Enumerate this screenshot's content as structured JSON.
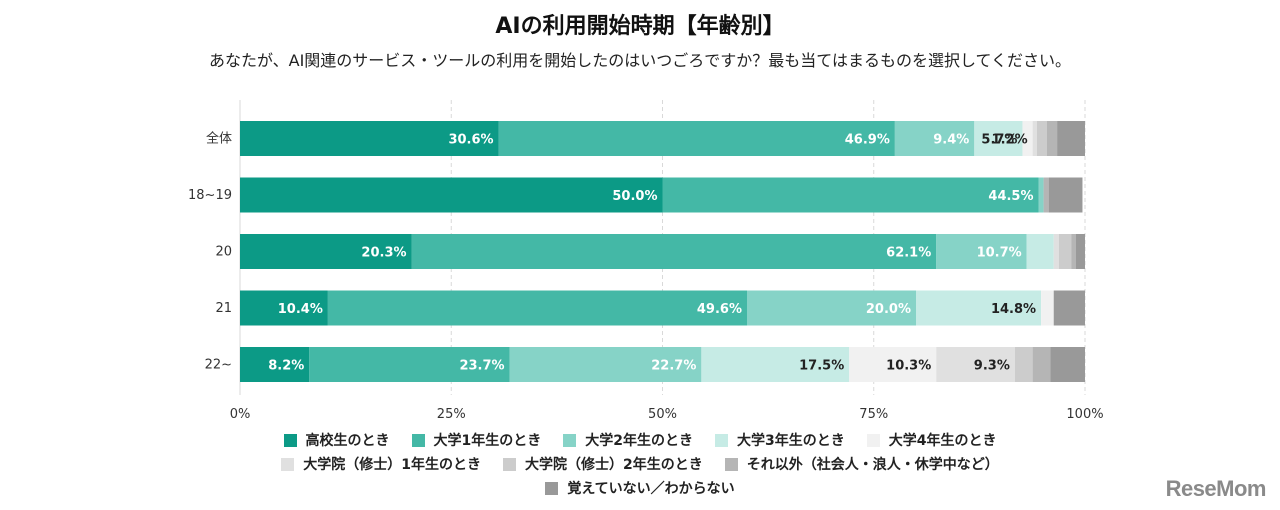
{
  "title": "AIの利用開始時期【年齢別】",
  "subtitle": "あなたが、AI関連のサービス・ツールの利用を開始したのはいつごろですか？最も当てはまるものを選択してください。",
  "watermark": "ReseMom",
  "chart_data": {
    "type": "bar",
    "orientation": "horizontal",
    "stacked": true,
    "percent_stacked": true,
    "categories": [
      "全体",
      "18~19",
      "20",
      "21",
      "22~"
    ],
    "xlim": [
      0,
      100
    ],
    "xticks": [
      "0%",
      "25%",
      "50%",
      "75%",
      "100%"
    ],
    "grid": true,
    "legend_position": "bottom",
    "series": [
      {
        "name": "高校生のとき",
        "color": "#0c9a86",
        "values": [
          30.6,
          50.0,
          20.3,
          10.4,
          8.2
        ],
        "labels": [
          "30.6%",
          "50.0%",
          "20.3%",
          "10.4%",
          "8.2%"
        ],
        "label_color": "#ffffff"
      },
      {
        "name": "大学1年生のとき",
        "color": "#44b8a6",
        "values": [
          46.9,
          44.5,
          62.1,
          49.6,
          23.7
        ],
        "labels": [
          "46.9%",
          "44.5%",
          "62.1%",
          "49.6%",
          "23.7%"
        ],
        "label_color": "#ffffff"
      },
      {
        "name": "大学2年生のとき",
        "color": "#86d3c7",
        "values": [
          9.4,
          0.6,
          10.7,
          20.0,
          22.7
        ],
        "labels": [
          "9.4%",
          "",
          "10.7%",
          "20.0%",
          "22.7%"
        ],
        "label_color": "#ffffff"
      },
      {
        "name": "大学3年生のとき",
        "color": "#c6ebe5",
        "values": [
          5.7,
          0.0,
          3.2,
          14.8,
          17.5
        ],
        "labels": [
          "5.7%",
          "",
          "",
          "14.8%",
          "17.5%"
        ],
        "label_color": "#222222"
      },
      {
        "name": "大学4年生のとき",
        "color": "#f1f1f1",
        "values": [
          1.2,
          0.0,
          0.0,
          1.5,
          10.3
        ],
        "labels": [
          "1.2%",
          "",
          "",
          "",
          "10.3%"
        ],
        "label_color": "#222222"
      },
      {
        "name": "大学院（修士）1年生のとき",
        "color": "#e0e0e0",
        "values": [
          0.5,
          0.0,
          0.6,
          0.0,
          9.3
        ],
        "labels": [
          "",
          "",
          "",
          "",
          "9.3%"
        ],
        "label_color": "#222222"
      },
      {
        "name": "大学院（修士）2年生のとき",
        "color": "#cccccc",
        "values": [
          1.2,
          0.0,
          1.5,
          0.0,
          2.1
        ],
        "labels": [
          "",
          "",
          "",
          "",
          ""
        ],
        "label_color": "#222222"
      },
      {
        "name": "それ以外（社会人・浪人・休学中など）",
        "color": "#b5b5b5",
        "values": [
          1.2,
          0.6,
          0.5,
          0.0,
          2.1
        ],
        "labels": [
          "",
          "",
          "",
          "",
          ""
        ],
        "label_color": "#222222"
      },
      {
        "name": "覚えていない／わからない",
        "color": "#999999",
        "values": [
          3.3,
          4.0,
          1.1,
          3.7,
          4.1
        ],
        "labels": [
          "",
          "",
          "",
          "",
          ""
        ],
        "label_color": "#222222"
      }
    ]
  }
}
